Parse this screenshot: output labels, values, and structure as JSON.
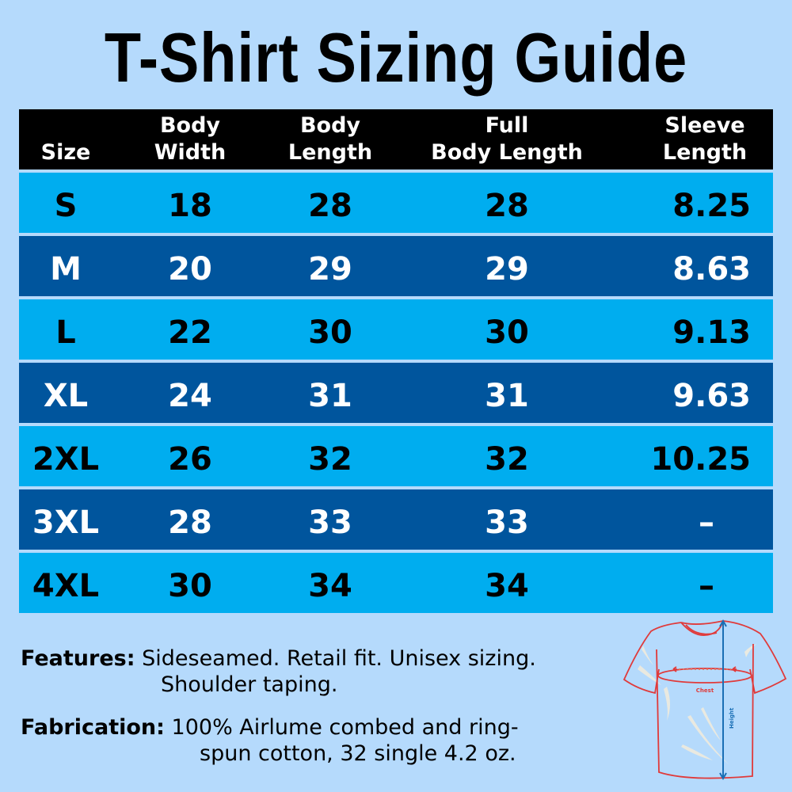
{
  "title": "T-Shirt Sizing Guide",
  "colors": {
    "background": "#b5dafc",
    "header": "#000000",
    "row_light": "#00adef",
    "row_dark": "#00559d",
    "diagram_outline": "#e03a3a",
    "diagram_measure": "#1a6fb5"
  },
  "table": {
    "headers": [
      "Size",
      "Body\nWidth",
      "Body\nLength",
      "Full\nBody Length",
      "Sleeve\nLength"
    ],
    "rows": [
      [
        "S",
        "18",
        "28",
        "28",
        "8.25"
      ],
      [
        "M",
        "20",
        "29",
        "29",
        "8.63"
      ],
      [
        "L",
        "22",
        "30",
        "30",
        "9.13"
      ],
      [
        "XL",
        "24",
        "31",
        "31",
        "9.63"
      ],
      [
        "2XL",
        "26",
        "32",
        "32",
        "10.25"
      ],
      [
        "3XL",
        "28",
        "33",
        "33",
        "–"
      ],
      [
        "4XL",
        "30",
        "34",
        "34",
        "–"
      ]
    ]
  },
  "features": {
    "label": "Features:",
    "lines": [
      "Sideseamed. Retail fit. Unisex sizing.",
      "Shoulder taping."
    ]
  },
  "fabrication": {
    "label": "Fabrication:",
    "lines": [
      "100% Airlume combed and ring-",
      "spun cotton, 32 single 4.2 oz."
    ]
  },
  "diagram": {
    "chest_label": "Chest",
    "height_label": "Height"
  }
}
